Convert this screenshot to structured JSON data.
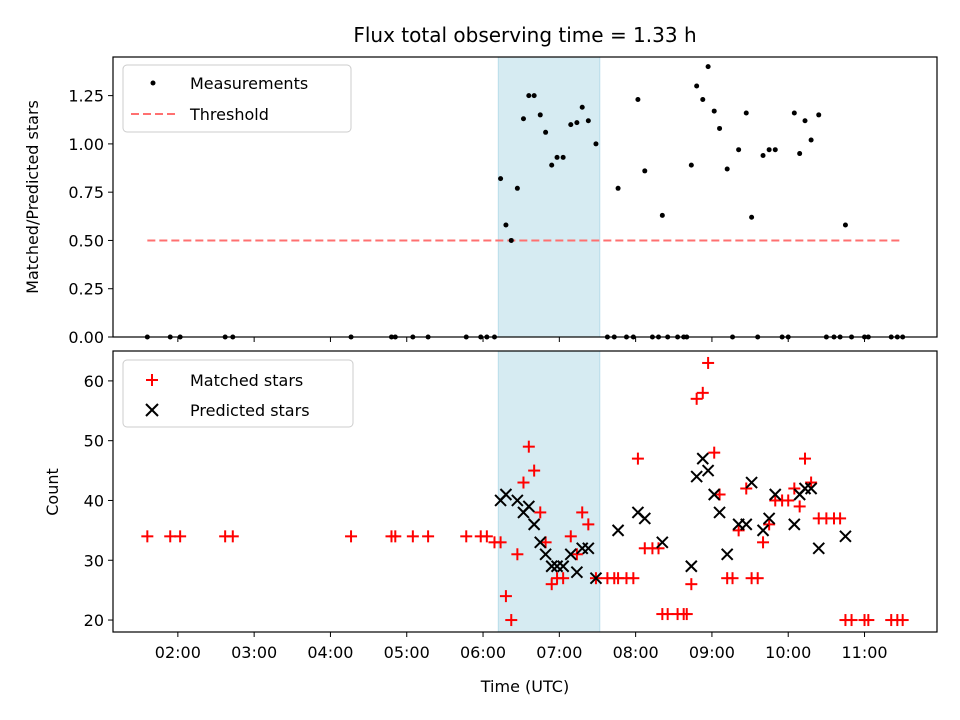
{
  "title": "Flux total observing time = 1.33 h",
  "colors": {
    "measurement": "#000000",
    "threshold": "#ff7070",
    "matched": "#ff0000",
    "predicted": "#000000",
    "highlight_fill": "#add8e6"
  },
  "chart_data": [
    {
      "type": "scatter",
      "ylabel": "Matched/Predicted stars",
      "xlim": [
        1.15,
        11.95
      ],
      "ylim": [
        0,
        1.45
      ],
      "yticks": [
        0,
        0.25,
        0.5,
        0.75,
        1.0,
        1.25
      ],
      "ytick_labels": [
        "0.00",
        "0.25",
        "0.50",
        "0.75",
        "1.00",
        "1.25"
      ],
      "legend_placement": "upper-left",
      "highlight_span": [
        6.2,
        7.53
      ],
      "threshold": {
        "name": "Threshold",
        "y": 0.5,
        "x_range": [
          1.6,
          11.5
        ]
      },
      "series": [
        {
          "name": "Measurements",
          "marker": "dot",
          "points": [
            [
              1.6,
              0
            ],
            [
              1.9,
              0
            ],
            [
              2.03,
              0
            ],
            [
              2.62,
              0
            ],
            [
              2.72,
              0
            ],
            [
              4.27,
              0
            ],
            [
              4.8,
              0
            ],
            [
              4.85,
              0
            ],
            [
              5.08,
              0
            ],
            [
              5.28,
              0
            ],
            [
              5.78,
              0
            ],
            [
              5.97,
              0
            ],
            [
              6.05,
              0
            ],
            [
              6.15,
              0
            ],
            [
              6.23,
              0.82
            ],
            [
              6.3,
              0.58
            ],
            [
              6.37,
              0.5
            ],
            [
              6.45,
              0.77
            ],
            [
              6.53,
              1.13
            ],
            [
              6.6,
              1.25
            ],
            [
              6.67,
              1.25
            ],
            [
              6.75,
              1.15
            ],
            [
              6.82,
              1.06
            ],
            [
              6.9,
              0.89
            ],
            [
              6.97,
              0.93
            ],
            [
              7.05,
              0.93
            ],
            [
              7.15,
              1.1
            ],
            [
              7.23,
              1.11
            ],
            [
              7.3,
              1.19
            ],
            [
              7.38,
              1.12
            ],
            [
              7.48,
              1.0
            ],
            [
              7.63,
              0
            ],
            [
              7.72,
              0
            ],
            [
              7.77,
              0.77
            ],
            [
              7.88,
              0
            ],
            [
              7.97,
              0
            ],
            [
              8.03,
              1.23
            ],
            [
              8.12,
              0.86
            ],
            [
              8.22,
              0
            ],
            [
              8.3,
              0
            ],
            [
              8.35,
              0.63
            ],
            [
              8.42,
              0
            ],
            [
              8.55,
              0
            ],
            [
              8.63,
              0
            ],
            [
              8.67,
              0
            ],
            [
              8.73,
              0.89
            ],
            [
              8.8,
              1.3
            ],
            [
              8.88,
              1.23
            ],
            [
              8.95,
              1.4
            ],
            [
              9.03,
              1.17
            ],
            [
              9.1,
              1.08
            ],
            [
              9.2,
              0.87
            ],
            [
              9.27,
              0
            ],
            [
              9.35,
              0.97
            ],
            [
              9.45,
              1.16
            ],
            [
              9.52,
              0.62
            ],
            [
              9.6,
              0
            ],
            [
              9.67,
              0.94
            ],
            [
              9.75,
              0.97
            ],
            [
              9.83,
              0.97
            ],
            [
              9.92,
              0
            ],
            [
              10.0,
              0
            ],
            [
              10.08,
              1.16
            ],
            [
              10.15,
              0.95
            ],
            [
              10.22,
              1.12
            ],
            [
              10.3,
              1.02
            ],
            [
              10.4,
              1.15
            ],
            [
              10.5,
              0
            ],
            [
              10.6,
              0
            ],
            [
              10.68,
              0
            ],
            [
              10.75,
              0.58
            ],
            [
              10.83,
              0
            ],
            [
              11.0,
              0
            ],
            [
              11.05,
              0
            ],
            [
              11.35,
              0
            ],
            [
              11.43,
              0
            ],
            [
              11.5,
              0
            ]
          ]
        }
      ]
    },
    {
      "type": "scatter",
      "xlabel": "Time (UTC)",
      "ylabel": "Count",
      "xlim": [
        1.15,
        11.95
      ],
      "ylim": [
        18,
        65
      ],
      "yticks": [
        20,
        30,
        40,
        50,
        60
      ],
      "ytick_labels": [
        "20",
        "30",
        "40",
        "50",
        "60"
      ],
      "xticks": [
        2,
        3,
        4,
        5,
        6,
        7,
        8,
        9,
        10,
        11
      ],
      "xtick_labels": [
        "02:00",
        "03:00",
        "04:00",
        "05:00",
        "06:00",
        "07:00",
        "08:00",
        "09:00",
        "10:00",
        "11:00"
      ],
      "legend_placement": "upper-left",
      "highlight_span": [
        6.2,
        7.53
      ],
      "series": [
        {
          "name": "Matched stars",
          "marker": "plus",
          "points": [
            [
              1.6,
              34
            ],
            [
              1.9,
              34
            ],
            [
              2.03,
              34
            ],
            [
              2.62,
              34
            ],
            [
              2.72,
              34
            ],
            [
              4.27,
              34
            ],
            [
              4.8,
              34
            ],
            [
              4.85,
              34
            ],
            [
              5.08,
              34
            ],
            [
              5.28,
              34
            ],
            [
              5.78,
              34
            ],
            [
              5.97,
              34
            ],
            [
              6.05,
              34
            ],
            [
              6.15,
              33
            ],
            [
              6.23,
              33
            ],
            [
              6.3,
              24
            ],
            [
              6.37,
              20
            ],
            [
              6.45,
              31
            ],
            [
              6.53,
              43
            ],
            [
              6.6,
              49
            ],
            [
              6.67,
              45
            ],
            [
              6.75,
              38
            ],
            [
              6.82,
              33
            ],
            [
              6.9,
              26
            ],
            [
              6.97,
              27
            ],
            [
              7.05,
              27
            ],
            [
              7.15,
              34
            ],
            [
              7.23,
              31
            ],
            [
              7.3,
              38
            ],
            [
              7.38,
              36
            ],
            [
              7.48,
              27
            ],
            [
              7.63,
              27
            ],
            [
              7.72,
              27
            ],
            [
              7.77,
              27
            ],
            [
              7.88,
              27
            ],
            [
              7.97,
              27
            ],
            [
              8.03,
              47
            ],
            [
              8.12,
              32
            ],
            [
              8.22,
              32
            ],
            [
              8.3,
              32
            ],
            [
              8.35,
              21
            ],
            [
              8.42,
              21
            ],
            [
              8.55,
              21
            ],
            [
              8.63,
              21
            ],
            [
              8.67,
              21
            ],
            [
              8.73,
              26
            ],
            [
              8.8,
              57
            ],
            [
              8.88,
              58
            ],
            [
              8.95,
              63
            ],
            [
              9.03,
              48
            ],
            [
              9.1,
              41
            ],
            [
              9.2,
              27
            ],
            [
              9.27,
              27
            ],
            [
              9.35,
              35
            ],
            [
              9.45,
              42
            ],
            [
              9.52,
              27
            ],
            [
              9.6,
              27
            ],
            [
              9.67,
              33
            ],
            [
              9.75,
              36
            ],
            [
              9.83,
              40
            ],
            [
              9.92,
              40
            ],
            [
              10.0,
              40
            ],
            [
              10.08,
              42
            ],
            [
              10.15,
              39
            ],
            [
              10.22,
              47
            ],
            [
              10.3,
              43
            ],
            [
              10.4,
              37
            ],
            [
              10.5,
              37
            ],
            [
              10.6,
              37
            ],
            [
              10.68,
              37
            ],
            [
              10.75,
              20
            ],
            [
              10.83,
              20
            ],
            [
              11.0,
              20
            ],
            [
              11.05,
              20
            ],
            [
              11.35,
              20
            ],
            [
              11.43,
              20
            ],
            [
              11.5,
              20
            ]
          ]
        },
        {
          "name": "Predicted stars",
          "marker": "x",
          "points": [
            [
              6.23,
              40
            ],
            [
              6.3,
              41
            ],
            [
              6.45,
              40
            ],
            [
              6.53,
              38
            ],
            [
              6.6,
              39
            ],
            [
              6.67,
              36
            ],
            [
              6.75,
              33
            ],
            [
              6.82,
              31
            ],
            [
              6.9,
              29
            ],
            [
              6.97,
              29
            ],
            [
              7.05,
              29
            ],
            [
              7.15,
              31
            ],
            [
              7.23,
              28
            ],
            [
              7.3,
              32
            ],
            [
              7.38,
              32
            ],
            [
              7.48,
              27
            ],
            [
              7.77,
              35
            ],
            [
              8.03,
              38
            ],
            [
              8.12,
              37
            ],
            [
              8.35,
              33
            ],
            [
              8.73,
              29
            ],
            [
              8.8,
              44
            ],
            [
              8.88,
              47
            ],
            [
              8.95,
              45
            ],
            [
              9.03,
              41
            ],
            [
              9.1,
              38
            ],
            [
              9.2,
              31
            ],
            [
              9.35,
              36
            ],
            [
              9.45,
              36
            ],
            [
              9.52,
              43
            ],
            [
              9.67,
              35
            ],
            [
              9.75,
              37
            ],
            [
              9.83,
              41
            ],
            [
              10.08,
              36
            ],
            [
              10.15,
              41
            ],
            [
              10.22,
              42
            ],
            [
              10.3,
              42
            ],
            [
              10.4,
              32
            ],
            [
              10.75,
              34
            ]
          ]
        }
      ]
    }
  ]
}
